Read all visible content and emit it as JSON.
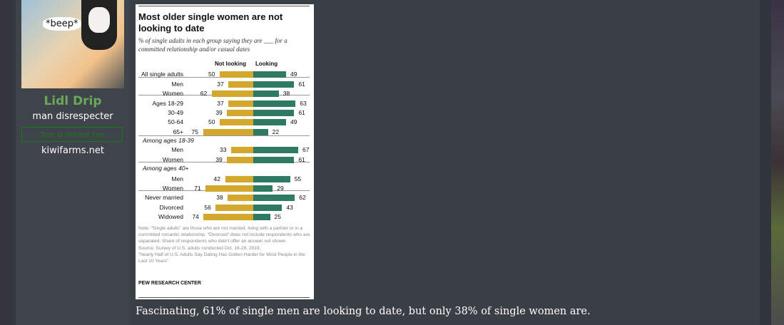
{
  "user": {
    "name": "Lidl Drip",
    "title": "man disrespecter",
    "banner": "True & Honest Fan",
    "site": "kiwifarms.net",
    "avatar_text": "*beep*"
  },
  "post": {
    "caption": "Fascinating, 61% of single men are looking to date, but only 38% of single women are."
  },
  "chart_data": {
    "type": "bar",
    "title": "Most older single women are not looking to date",
    "subtitle": "% of single adults in each group saying they are ___ for a committed relationship and/or casual dates",
    "legend": [
      "Not looking",
      "Looking"
    ],
    "colors": {
      "not_looking": "#d4a82c",
      "looking": "#2f7a63"
    },
    "groups": [
      "",
      "",
      "Among ages 18-39",
      "Among ages 40+",
      ""
    ],
    "rows": [
      {
        "label": "All single adults",
        "group": 0,
        "not_looking": 50,
        "looking": 49
      },
      {
        "label": "Men",
        "group": 0,
        "not_looking": 37,
        "looking": 61
      },
      {
        "label": "Women",
        "group": 0,
        "not_looking": 62,
        "looking": 38
      },
      {
        "label": "Ages 18-29",
        "group": 1,
        "not_looking": 37,
        "looking": 63
      },
      {
        "label": "30-49",
        "group": 1,
        "not_looking": 39,
        "looking": 61
      },
      {
        "label": "50-64",
        "group": 1,
        "not_looking": 50,
        "looking": 49
      },
      {
        "label": "65+",
        "group": 1,
        "not_looking": 75,
        "looking": 22
      },
      {
        "label": "Men",
        "group": 2,
        "not_looking": 33,
        "looking": 67
      },
      {
        "label": "Women",
        "group": 2,
        "not_looking": 39,
        "looking": 61
      },
      {
        "label": "Men",
        "group": 3,
        "not_looking": 42,
        "looking": 55
      },
      {
        "label": "Women",
        "group": 3,
        "not_looking": 71,
        "looking": 29
      },
      {
        "label": "Never married",
        "group": 4,
        "not_looking": 38,
        "looking": 62
      },
      {
        "label": "Divorced",
        "group": 4,
        "not_looking": 56,
        "looking": 43
      },
      {
        "label": "Widowed",
        "group": 4,
        "not_looking": 74,
        "looking": 25
      }
    ],
    "note": "Note: “Single adults” are those who are not married, living with a partner or in a committed romantic relationship. “Divorced” does not include respondents who are separated. Share of respondents who didn't offer an answer not shown.",
    "source": "Source: Survey of U.S. adults conducted Oct. 16-28, 2019.",
    "report": "“Nearly Half of U.S. Adults Say Dating Has Gotten Harder for Most People in the Last 10 Years”",
    "credit": "PEW RESEARCH CENTER"
  }
}
